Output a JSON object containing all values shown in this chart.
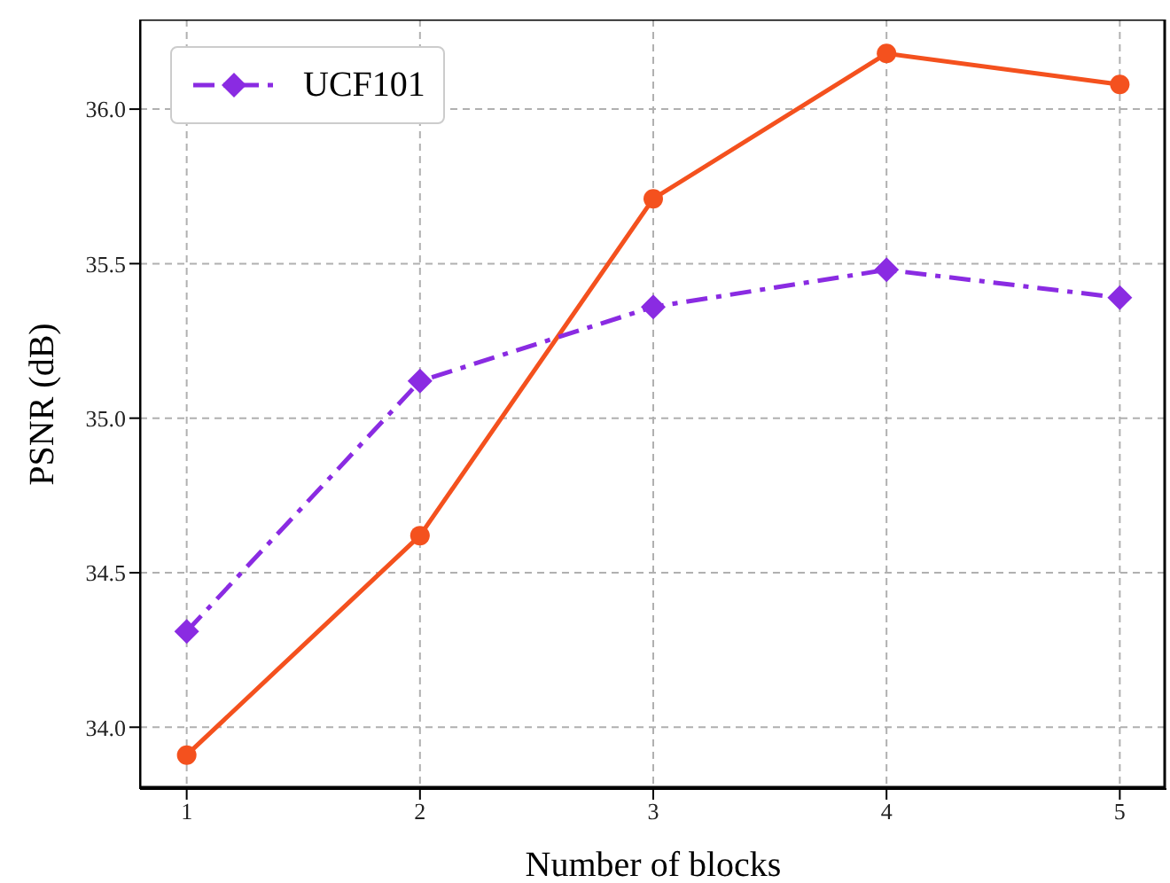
{
  "chart_data": {
    "type": "line",
    "xlabel": "Number of blocks",
    "ylabel": "PSNR (dB)",
    "x": [
      1,
      2,
      3,
      4,
      5
    ],
    "series": [
      {
        "color": "#f4511e",
        "values": [
          33.91,
          34.62,
          35.71,
          36.18,
          36.08
        ],
        "marker": "circle",
        "line_style": "solid"
      },
      {
        "name": "UCF101",
        "color": "#8a2be2",
        "values": [
          34.31,
          35.12,
          35.36,
          35.48,
          35.39
        ],
        "marker": "diamond",
        "line_style": "dashed"
      }
    ],
    "xlim": [
      0.8,
      5.2
    ],
    "xticks": [
      1,
      2,
      3,
      4,
      5
    ],
    "ylim": [
      33.8,
      36.29
    ],
    "yticks": [
      {
        "value": 34,
        "label": "34.0"
      },
      {
        "value": 34.5,
        "label": "34.5"
      },
      {
        "value": 35,
        "label": "35.0"
      },
      {
        "value": 35.5,
        "label": "35.5"
      },
      {
        "value": 36,
        "label": "36.0"
      }
    ],
    "grid": true,
    "legend": "top left"
  }
}
